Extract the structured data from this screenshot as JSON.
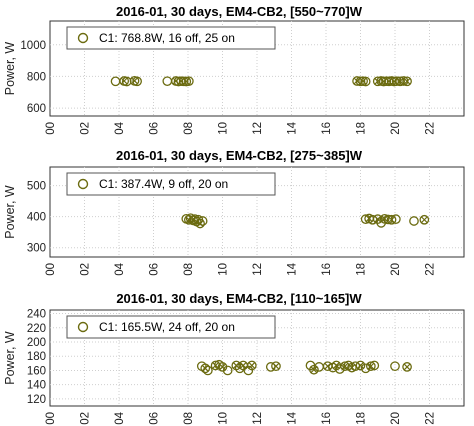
{
  "colors": {
    "marker": "#6b6b10",
    "grid": "#cfcfcf",
    "axis": "#333333"
  },
  "chart_data": [
    {
      "type": "scatter",
      "title": "2016-01, 30 days, EM4-CB2, [550~770]W",
      "xlabel": "",
      "ylabel": "Power, W",
      "xlim": [
        0,
        24
      ],
      "ylim": [
        550,
        1150
      ],
      "xticks": [
        "00",
        "02",
        "04",
        "06",
        "08",
        "10",
        "12",
        "14",
        "16",
        "18",
        "20",
        "22"
      ],
      "yticks": [
        600,
        800,
        1000
      ],
      "grid": true,
      "legend": {
        "position": "top-left",
        "label": "C1: 768.8W, 16 off, 25 on"
      },
      "series": [
        {
          "label": "C1: 768.8W, 16 off, 25 on",
          "points": [
            {
              "x": 3.8,
              "y": 769,
              "m": "o"
            },
            {
              "x": 4.3,
              "y": 771,
              "m": "x"
            },
            {
              "x": 4.45,
              "y": 768,
              "m": "o"
            },
            {
              "x": 4.9,
              "y": 772,
              "m": "x"
            },
            {
              "x": 5.05,
              "y": 769,
              "m": "o"
            },
            {
              "x": 6.8,
              "y": 770,
              "m": "o"
            },
            {
              "x": 7.3,
              "y": 771,
              "m": "x"
            },
            {
              "x": 7.45,
              "y": 768,
              "m": "o"
            },
            {
              "x": 7.6,
              "y": 770,
              "m": "x"
            },
            {
              "x": 7.75,
              "y": 769,
              "m": "o"
            },
            {
              "x": 7.9,
              "y": 768,
              "m": "x"
            },
            {
              "x": 8.05,
              "y": 770,
              "m": "o"
            },
            {
              "x": 17.8,
              "y": 771,
              "m": "x"
            },
            {
              "x": 18.0,
              "y": 769,
              "m": "o"
            },
            {
              "x": 18.15,
              "y": 770,
              "m": "x"
            },
            {
              "x": 18.3,
              "y": 768,
              "m": "o"
            },
            {
              "x": 19.0,
              "y": 769,
              "m": "x"
            },
            {
              "x": 19.2,
              "y": 771,
              "m": "o"
            },
            {
              "x": 19.35,
              "y": 768,
              "m": "x"
            },
            {
              "x": 19.5,
              "y": 770,
              "m": "o"
            },
            {
              "x": 19.65,
              "y": 769,
              "m": "x"
            },
            {
              "x": 19.8,
              "y": 771,
              "m": "o"
            },
            {
              "x": 19.95,
              "y": 768,
              "m": "x"
            },
            {
              "x": 20.1,
              "y": 770,
              "m": "o"
            },
            {
              "x": 20.3,
              "y": 769,
              "m": "x"
            },
            {
              "x": 20.5,
              "y": 771,
              "m": "o"
            },
            {
              "x": 20.7,
              "y": 769,
              "m": "x"
            }
          ]
        }
      ]
    },
    {
      "type": "scatter",
      "title": "2016-01, 30 days, EM4-CB2, [275~385]W",
      "xlabel": "",
      "ylabel": "Power, W",
      "xlim": [
        0,
        24
      ],
      "ylim": [
        270,
        560
      ],
      "xticks": [
        "00",
        "02",
        "04",
        "06",
        "08",
        "10",
        "12",
        "14",
        "16",
        "18",
        "20",
        "22"
      ],
      "yticks": [
        300,
        400,
        500
      ],
      "grid": true,
      "legend": {
        "position": "top-left",
        "label": "C1: 387.4W, 9 off, 20 on"
      },
      "series": [
        {
          "label": "C1: 387.4W, 9 off, 20 on",
          "points": [
            {
              "x": 7.9,
              "y": 393,
              "m": "o"
            },
            {
              "x": 8.05,
              "y": 390,
              "m": "x"
            },
            {
              "x": 8.15,
              "y": 395,
              "m": "o"
            },
            {
              "x": 8.3,
              "y": 388,
              "m": "x"
            },
            {
              "x": 8.4,
              "y": 392,
              "m": "o"
            },
            {
              "x": 8.5,
              "y": 384,
              "m": "x"
            },
            {
              "x": 8.6,
              "y": 390,
              "m": "o"
            },
            {
              "x": 8.7,
              "y": 378,
              "m": "x"
            },
            {
              "x": 8.85,
              "y": 386,
              "m": "o"
            },
            {
              "x": 18.3,
              "y": 392,
              "m": "o"
            },
            {
              "x": 18.5,
              "y": 394,
              "m": "x"
            },
            {
              "x": 18.7,
              "y": 390,
              "m": "o"
            },
            {
              "x": 19.0,
              "y": 392,
              "m": "x"
            },
            {
              "x": 19.2,
              "y": 380,
              "m": "o"
            },
            {
              "x": 19.4,
              "y": 393,
              "m": "x"
            },
            {
              "x": 19.6,
              "y": 391,
              "m": "o"
            },
            {
              "x": 19.8,
              "y": 390,
              "m": "x"
            },
            {
              "x": 20.05,
              "y": 392,
              "m": "o"
            },
            {
              "x": 21.1,
              "y": 386,
              "m": "o"
            },
            {
              "x": 21.7,
              "y": 390,
              "m": "x"
            }
          ]
        }
      ]
    },
    {
      "type": "scatter",
      "title": "2016-01, 30 days, EM4-CB2, [110~165]W",
      "xlabel": "",
      "ylabel": "Power, W",
      "xlim": [
        0,
        24
      ],
      "ylim": [
        110,
        245
      ],
      "xticks": [
        "00",
        "02",
        "04",
        "06",
        "08",
        "10",
        "12",
        "14",
        "16",
        "18",
        "20",
        "22"
      ],
      "yticks": [
        120,
        140,
        160,
        180,
        200,
        220,
        240
      ],
      "grid": true,
      "legend": {
        "position": "top-left",
        "label": "C1: 165.5W, 24 off, 20 on"
      },
      "series": [
        {
          "label": "C1: 165.5W, 24 off, 20 on",
          "points": [
            {
              "x": 8.8,
              "y": 166,
              "m": "o"
            },
            {
              "x": 9.0,
              "y": 163,
              "m": "x"
            },
            {
              "x": 9.15,
              "y": 160,
              "m": "o"
            },
            {
              "x": 9.6,
              "y": 167,
              "m": "x"
            },
            {
              "x": 9.8,
              "y": 168,
              "m": "o"
            },
            {
              "x": 10.0,
              "y": 165,
              "m": "x"
            },
            {
              "x": 10.3,
              "y": 160,
              "m": "o"
            },
            {
              "x": 10.8,
              "y": 167,
              "m": "x"
            },
            {
              "x": 11.0,
              "y": 163,
              "m": "o"
            },
            {
              "x": 11.2,
              "y": 167,
              "m": "x"
            },
            {
              "x": 11.5,
              "y": 160,
              "m": "o"
            },
            {
              "x": 11.7,
              "y": 167,
              "m": "x"
            },
            {
              "x": 12.8,
              "y": 165,
              "m": "o"
            },
            {
              "x": 13.1,
              "y": 166,
              "m": "x"
            },
            {
              "x": 15.1,
              "y": 167,
              "m": "o"
            },
            {
              "x": 15.3,
              "y": 161,
              "m": "x"
            },
            {
              "x": 15.6,
              "y": 165,
              "m": "o"
            },
            {
              "x": 16.1,
              "y": 166,
              "m": "x"
            },
            {
              "x": 16.4,
              "y": 164,
              "m": "o"
            },
            {
              "x": 16.6,
              "y": 167,
              "m": "x"
            },
            {
              "x": 16.8,
              "y": 162,
              "m": "o"
            },
            {
              "x": 17.1,
              "y": 166,
              "m": "x"
            },
            {
              "x": 17.3,
              "y": 167,
              "m": "o"
            },
            {
              "x": 17.5,
              "y": 164,
              "m": "x"
            },
            {
              "x": 17.7,
              "y": 166,
              "m": "o"
            },
            {
              "x": 18.0,
              "y": 167,
              "m": "x"
            },
            {
              "x": 18.3,
              "y": 163,
              "m": "o"
            },
            {
              "x": 18.6,
              "y": 166,
              "m": "x"
            },
            {
              "x": 18.8,
              "y": 167,
              "m": "o"
            },
            {
              "x": 20.0,
              "y": 166,
              "m": "o"
            },
            {
              "x": 20.7,
              "y": 165,
              "m": "x"
            }
          ]
        }
      ]
    }
  ]
}
